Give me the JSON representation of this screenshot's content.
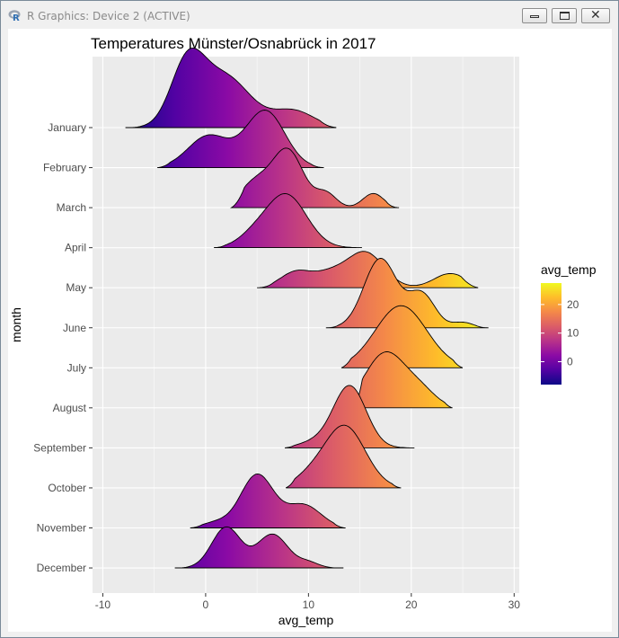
{
  "window": {
    "title": "R Graphics: Device 2 (ACTIVE)",
    "app_icon_letter": "R",
    "buttons": {
      "minimize": "minimize",
      "maximize": "maximize",
      "close": "close"
    }
  },
  "colors": {
    "panel_bg": "#EBEBEB",
    "grid": "#FFFFFF",
    "ridge_outline": "#000000",
    "gradient_low": "#0D0887",
    "gradient_mid": "#CC4778",
    "gradient_high": "#F0F921"
  },
  "chart_data": {
    "type": "ridgeline",
    "title": "Temperatures Münster/Osnabrück in 2017",
    "xlabel": "avg_temp",
    "ylabel": "month",
    "xlim": [
      -11,
      30.5
    ],
    "x_ticks": [
      -10,
      0,
      10,
      20,
      30
    ],
    "x_tick_labels": [
      "-10",
      "0",
      "10",
      "20",
      "30"
    ],
    "grid": true,
    "categories": [
      "January",
      "February",
      "March",
      "April",
      "May",
      "June",
      "July",
      "August",
      "September",
      "October",
      "November",
      "December"
    ],
    "fill_variable": "avg_temp",
    "legend": {
      "title": "avg_temp",
      "position": "right",
      "breaks": [
        0,
        10,
        20
      ],
      "break_labels": [
        "0",
        "10",
        "20"
      ],
      "range": [
        -8,
        27.5
      ],
      "palette": [
        "#0D0887",
        "#5302A3",
        "#8B0AA5",
        "#B83289",
        "#DB5C68",
        "#F48849",
        "#FEBC2A",
        "#F0F921"
      ]
    },
    "series": [
      {
        "name": "January",
        "range": [
          -7.8,
          12.7
        ],
        "peaks": [
          [
            -1.8,
            3.3,
            1.6
          ],
          [
            1.8,
            2.9,
            2.5
          ],
          [
            8.5,
            0.95,
            2.0
          ]
        ]
      },
      {
        "name": "February",
        "range": [
          -4.7,
          11.5
        ],
        "peaks": [
          [
            0.3,
            1.8,
            2.0
          ],
          [
            5.8,
            3.2,
            1.9
          ]
        ]
      },
      {
        "name": "March",
        "range": [
          2.5,
          18.8
        ],
        "peaks": [
          [
            8.0,
            3.2,
            1.5
          ],
          [
            4.8,
            1.4,
            1.5
          ],
          [
            11.7,
            0.8,
            1.0
          ],
          [
            16.3,
            0.8,
            1.0
          ]
        ]
      },
      {
        "name": "April",
        "range": [
          0.8,
          15.2
        ],
        "peaks": [
          [
            7.8,
            3.0,
            2.0
          ],
          [
            4.5,
            0.5,
            1.5
          ]
        ]
      },
      {
        "name": "May",
        "range": [
          5.0,
          26.5
        ],
        "peaks": [
          [
            8.8,
            0.9,
            1.5
          ],
          [
            15.5,
            2.0,
            1.8
          ],
          [
            23.8,
            0.8,
            1.6
          ],
          [
            12.0,
            0.7,
            1.5
          ]
        ]
      },
      {
        "name": "June",
        "range": [
          11.7,
          27.5
        ],
        "peaks": [
          [
            17.0,
            3.9,
            1.6
          ],
          [
            21.0,
            1.9,
            1.3
          ],
          [
            25.0,
            0.3,
            1.0
          ]
        ]
      },
      {
        "name": "July",
        "range": [
          13.2,
          25.0
        ],
        "peaks": [
          [
            19.0,
            3.5,
            2.5
          ]
        ]
      },
      {
        "name": "August",
        "range": [
          14.5,
          24.0
        ],
        "peaks": [
          [
            17.5,
            3.1,
            2.0
          ],
          [
            21.0,
            0.8,
            1.5
          ]
        ]
      },
      {
        "name": "September",
        "range": [
          7.7,
          20.3
        ],
        "peaks": [
          [
            14.0,
            3.5,
            1.6
          ],
          [
            10.5,
            0.3,
            1.5
          ]
        ]
      },
      {
        "name": "October",
        "range": [
          7.8,
          19.0
        ],
        "peaks": [
          [
            13.5,
            3.5,
            2.0
          ],
          [
            10.0,
            0.5,
            1.5
          ]
        ]
      },
      {
        "name": "November",
        "range": [
          -1.5,
          13.6
        ],
        "peaks": [
          [
            5.0,
            3.0,
            1.6
          ],
          [
            9.5,
            1.3,
            1.7
          ],
          [
            1.0,
            0.3,
            1.3
          ]
        ]
      },
      {
        "name": "December",
        "range": [
          -3.0,
          13.4
        ],
        "peaks": [
          [
            2.0,
            2.3,
            1.4
          ],
          [
            6.5,
            1.9,
            1.5
          ],
          [
            10.0,
            0.3,
            1.0
          ]
        ]
      }
    ]
  }
}
